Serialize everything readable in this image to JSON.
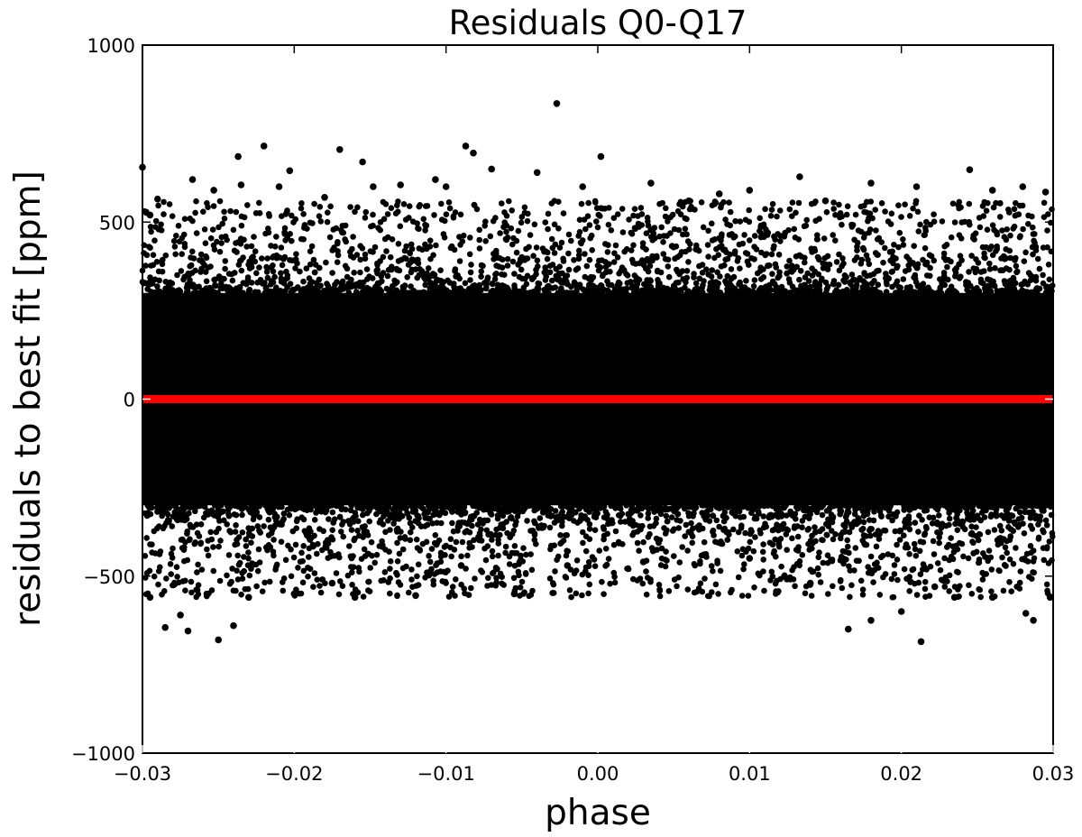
{
  "chart_data": {
    "type": "scatter",
    "title": "Residuals Q0-Q17",
    "xlabel": "phase",
    "ylabel": "residuals to best fit [ppm]",
    "xlim": [
      -0.03,
      0.03
    ],
    "ylim": [
      -1000,
      1000
    ],
    "xticks": [
      -0.03,
      -0.02,
      -0.01,
      0.0,
      0.01,
      0.02,
      0.03
    ],
    "xtick_labels": [
      "−0.03",
      "−0.02",
      "−0.01",
      "0.00",
      "0.01",
      "0.02",
      "0.03"
    ],
    "yticks": [
      -1000,
      -500,
      0,
      500,
      1000
    ],
    "ytick_labels": [
      "−1000",
      "−500",
      "0",
      "500",
      "1000"
    ],
    "grid": false,
    "legend": "none",
    "series": [
      {
        "kind": "scatter-points",
        "color": "#000000",
        "dense_band": [
          -300,
          300
        ],
        "outliers": [
          [
            -0.0027,
            835
          ],
          [
            -0.022,
            715
          ],
          [
            -0.0087,
            715
          ],
          [
            -0.017,
            705
          ],
          [
            -0.0082,
            695
          ],
          [
            0.0002,
            685
          ],
          [
            -0.0237,
            685
          ],
          [
            -0.0203,
            645
          ],
          [
            0.0245,
            648
          ],
          [
            -0.0107,
            620
          ],
          [
            0.0133,
            628
          ],
          [
            -0.0267,
            620
          ],
          [
            -0.03,
            655
          ],
          [
            -0.0295,
            520
          ],
          [
            -0.029,
            565
          ],
          [
            -0.0253,
            590
          ],
          [
            -0.0235,
            605
          ],
          [
            -0.021,
            600
          ],
          [
            -0.0155,
            670
          ],
          [
            -0.0148,
            600
          ],
          [
            -0.013,
            605
          ],
          [
            -0.01,
            600
          ],
          [
            -0.007,
            650
          ],
          [
            -0.004,
            640
          ],
          [
            -0.001,
            600
          ],
          [
            0.0035,
            610
          ],
          [
            0.006,
            560
          ],
          [
            0.01,
            590
          ],
          [
            0.015,
            560
          ],
          [
            0.018,
            610
          ],
          [
            0.021,
            600
          ],
          [
            0.026,
            590
          ],
          [
            0.028,
            600
          ],
          [
            0.0295,
            585
          ],
          [
            -0.018,
            570
          ],
          [
            0.008,
            580
          ],
          [
            -0.025,
            -680
          ],
          [
            -0.0285,
            -645
          ],
          [
            -0.027,
            -655
          ],
          [
            -0.024,
            -640
          ],
          [
            -0.0295,
            -560
          ],
          [
            -0.0275,
            -610
          ],
          [
            -0.023,
            -560
          ],
          [
            -0.02,
            -550
          ],
          [
            -0.016,
            -560
          ],
          [
            -0.012,
            -555
          ],
          [
            -0.0055,
            -550
          ],
          [
            -0.002,
            -470
          ],
          [
            0.003,
            -460
          ],
          [
            0.01,
            -450
          ],
          [
            0.0165,
            -650
          ],
          [
            0.0213,
            -685
          ],
          [
            0.018,
            -625
          ],
          [
            0.02,
            -600
          ],
          [
            0.0235,
            -560
          ],
          [
            0.026,
            -560
          ],
          [
            0.0282,
            -605
          ],
          [
            0.0287,
            -625
          ],
          [
            0.0298,
            -560
          ],
          [
            0.014,
            -520
          ],
          [
            0.007,
            -440
          ],
          [
            -0.009,
            -470
          ],
          [
            -0.0175,
            -520
          ],
          [
            0.0222,
            -530
          ]
        ]
      },
      {
        "kind": "line",
        "color": "#ff0000",
        "x": [
          -0.03,
          0.03
        ],
        "y": [
          0,
          0
        ]
      }
    ]
  }
}
